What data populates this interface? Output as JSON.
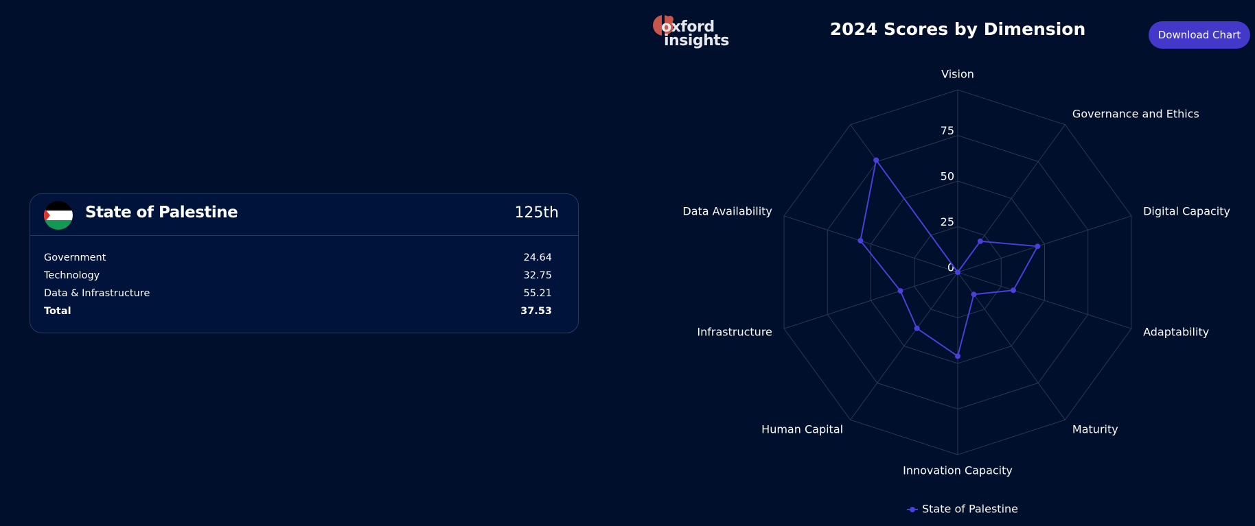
{
  "logo": {
    "line1": "oxford",
    "line2": "insights"
  },
  "button": "Download Chart",
  "card": {
    "country": "State of Palestine",
    "rank": "125th",
    "rows": [
      [
        "Government",
        24.64
      ],
      [
        "Technology",
        32.75
      ],
      [
        "Data & Infrastructure",
        55.21
      ],
      [
        "Total",
        37.53
      ]
    ]
  },
  "chart_data": {
    "type": "radar",
    "title": "2024 Scores by Dimension",
    "categories": [
      "Vision",
      "Governance and Ethics",
      "Digital Capacity",
      "Adaptability",
      "Maturity",
      "Innovation Capacity",
      "Human Capital",
      "Infrastructure",
      "Data Availability",
      null
    ],
    "series": [
      {
        "name": "State of Palestine",
        "color": "#4a3fd8",
        "values": [
          0,
          21,
          46,
          32,
          15,
          46,
          38,
          33,
          56,
          76
        ]
      }
    ],
    "rlim": [
      0,
      100
    ],
    "rticks": [
      0,
      25,
      50,
      75
    ],
    "grid": true,
    "legend": "bottom"
  }
}
